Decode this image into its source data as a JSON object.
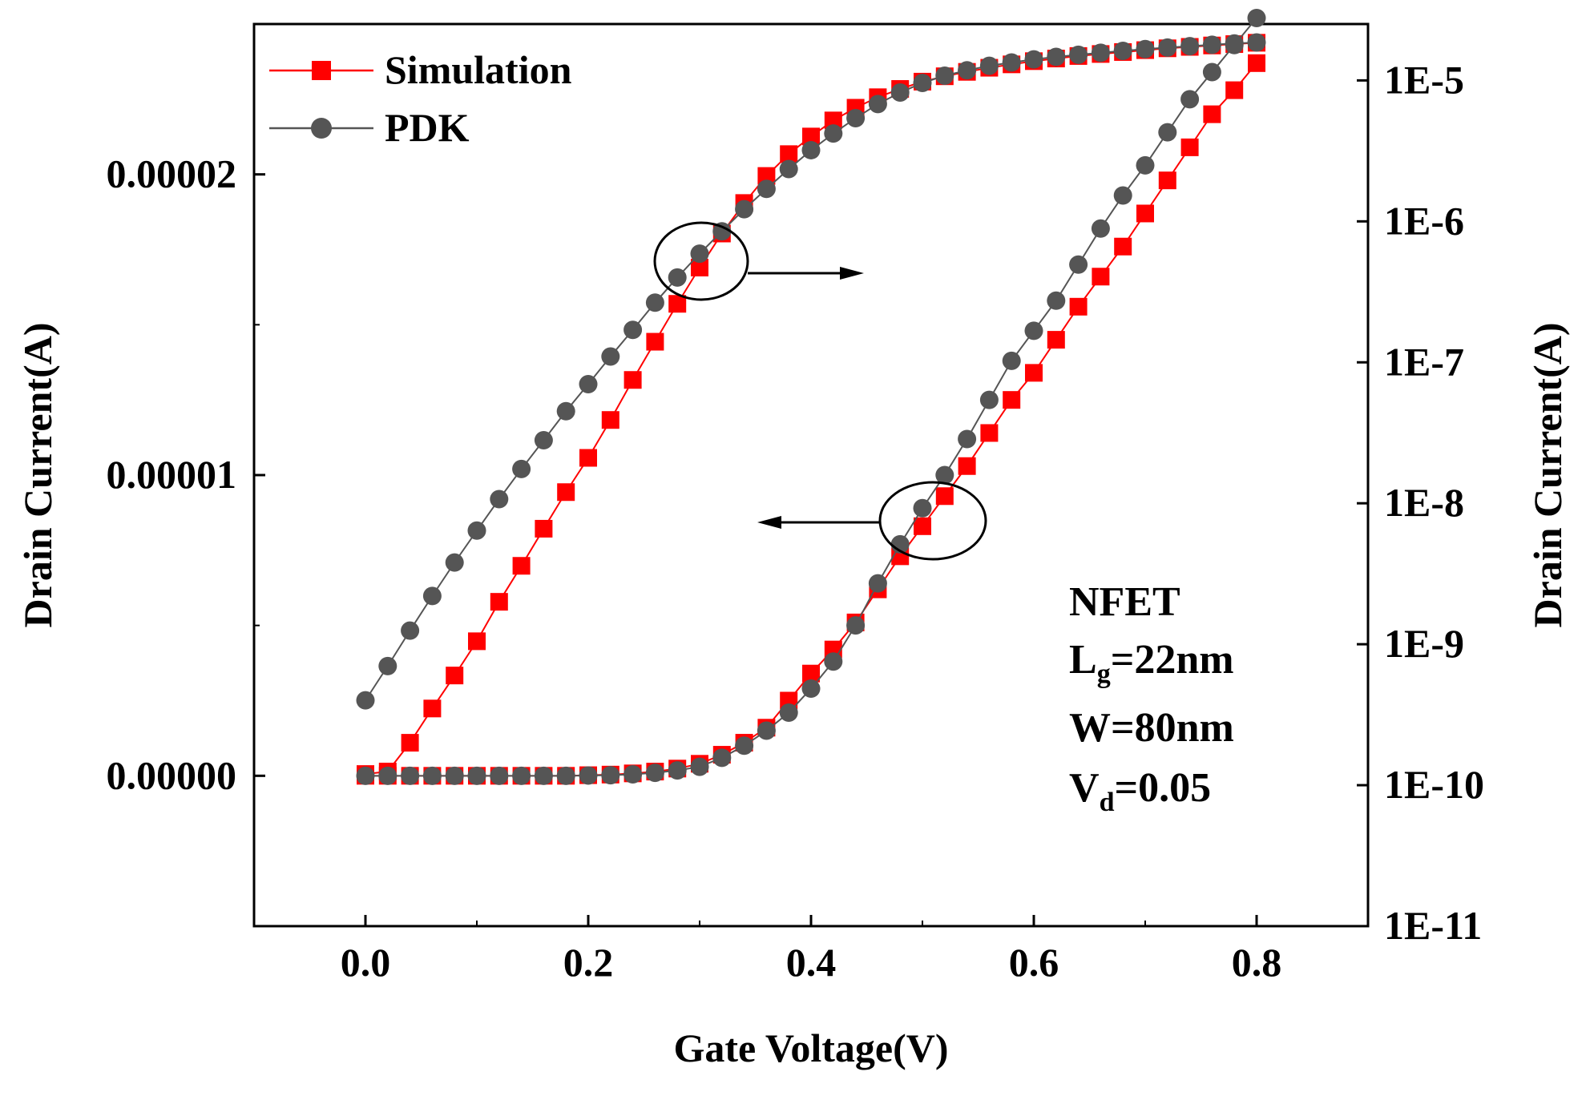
{
  "chart_data": {
    "type": "line",
    "x": [
      0.0,
      0.02,
      0.04,
      0.06,
      0.08,
      0.1,
      0.12,
      0.14,
      0.16,
      0.18,
      0.2,
      0.22,
      0.24,
      0.26,
      0.28,
      0.3,
      0.32,
      0.34,
      0.36,
      0.38,
      0.4,
      0.42,
      0.44,
      0.46,
      0.48,
      0.5,
      0.52,
      0.54,
      0.56,
      0.58,
      0.6,
      0.62,
      0.64,
      0.66,
      0.68,
      0.7,
      0.72,
      0.74,
      0.76,
      0.78,
      0.8
    ],
    "xlabel": "Gate Voltage(V)",
    "ylabel_left": "Drain Current(A)",
    "ylabel_right": "Drain Current(A)",
    "xlim": [
      -0.1,
      0.9
    ],
    "ylim_left": [
      -5e-06,
      2.5e-05
    ],
    "ylim_right_log10": [
      -11,
      -4.6
    ],
    "x_ticks": [
      "0.0",
      "0.2",
      "0.4",
      "0.6",
      "0.8"
    ],
    "x_tick_values": [
      0,
      0.2,
      0.4,
      0.6,
      0.8
    ],
    "y_ticks_left": [
      "0.00000",
      "0.00001",
      "0.00002"
    ],
    "y_tick_values_left": [
      0,
      1e-05,
      2e-05
    ],
    "y_ticks_right": [
      "1E-11",
      "1E-10",
      "1E-9",
      "1E-8",
      "1E-7",
      "1E-6",
      "1E-5"
    ],
    "y_tick_exponents_right": [
      -11,
      -10,
      -9,
      -8,
      -7,
      -6,
      -5
    ],
    "series": [
      {
        "name": "Simulation",
        "color": "#ff0000",
        "marker": "square",
        "linear_values": [
          0,
          0,
          0,
          0,
          0,
          0,
          0,
          0,
          0,
          0,
          2e-08,
          4e-08,
          8e-08,
          1.4e-07,
          2.4e-07,
          4e-07,
          7e-07,
          1.1e-06,
          1.6e-06,
          2.5e-06,
          3.4e-06,
          4.2e-06,
          5.1e-06,
          6.2e-06,
          7.3e-06,
          8.3e-06,
          9.3e-06,
          1.03e-05,
          1.14e-05,
          1.25e-05,
          1.34e-05,
          1.45e-05,
          1.56e-05,
          1.66e-05,
          1.76e-05,
          1.87e-05,
          1.98e-05,
          2.09e-05,
          2.2e-05,
          2.28e-05,
          2.37e-05
        ],
        "log_values": [
          1.2e-10,
          1.25e-10,
          2e-10,
          3.5e-10,
          6e-10,
          1.05e-09,
          2e-09,
          3.6e-09,
          6.6e-09,
          1.2e-08,
          2.1e-08,
          3.9e-08,
          7.5e-08,
          1.4e-07,
          2.6e-07,
          4.7e-07,
          8.2e-07,
          1.35e-06,
          2.1e-06,
          3e-06,
          4e-06,
          5.2e-06,
          6.4e-06,
          7.6e-06,
          8.7e-06,
          9.8e-06,
          1.07e-05,
          1.15e-05,
          1.23e-05,
          1.3e-05,
          1.37e-05,
          1.43e-05,
          1.49e-05,
          1.54e-05,
          1.59e-05,
          1.64e-05,
          1.69e-05,
          1.73e-05,
          1.77e-05,
          1.81e-05,
          1.85e-05
        ]
      },
      {
        "name": "PDK",
        "color": "#555555",
        "marker": "circle",
        "linear_values": [
          0,
          0,
          0,
          0,
          0,
          0,
          0,
          0,
          0,
          0,
          1e-08,
          2e-08,
          5e-08,
          1e-07,
          1.8e-07,
          3e-07,
          6e-07,
          1e-06,
          1.5e-06,
          2.1e-06,
          2.9e-06,
          3.8e-06,
          5e-06,
          6.4e-06,
          7.7e-06,
          8.9e-06,
          1e-05,
          1.12e-05,
          1.25e-05,
          1.38e-05,
          1.48e-05,
          1.58e-05,
          1.7e-05,
          1.82e-05,
          1.93e-05,
          2.03e-05,
          2.14e-05,
          2.25e-05,
          2.34e-05,
          2.43e-05,
          2.52e-05
        ],
        "log_values": [
          4e-10,
          7e-10,
          1.25e-09,
          2.2e-09,
          3.8e-09,
          6.4e-09,
          1.07e-08,
          1.75e-08,
          2.8e-08,
          4.5e-08,
          7e-08,
          1.1e-07,
          1.7e-07,
          2.65e-07,
          4e-07,
          5.9e-07,
          8.5e-07,
          1.22e-06,
          1.7e-06,
          2.35e-06,
          3.2e-06,
          4.2e-06,
          5.4e-06,
          6.8e-06,
          8.2e-06,
          9.6e-06,
          1.08e-05,
          1.18e-05,
          1.27e-05,
          1.34e-05,
          1.41e-05,
          1.47e-05,
          1.52e-05,
          1.57e-05,
          1.62e-05,
          1.67e-05,
          1.71e-05,
          1.75e-05,
          1.79e-05,
          1.83e-05,
          1.86e-05
        ]
      }
    ],
    "legend": {
      "position": "top-left",
      "entries": [
        "Simulation",
        "PDK"
      ]
    },
    "annotation": {
      "device": "NFET",
      "lg_main": "L",
      "lg_sub": "g",
      "lg_value": "=22nm",
      "width": "W=80nm",
      "vd_main": "V",
      "vd_sub": "d",
      "vd_value": "=0.05"
    },
    "arrows": [
      {
        "target_axis": "right",
        "circled_x": 0.3
      },
      {
        "target_axis": "left",
        "circled_x": 0.51
      }
    ]
  }
}
